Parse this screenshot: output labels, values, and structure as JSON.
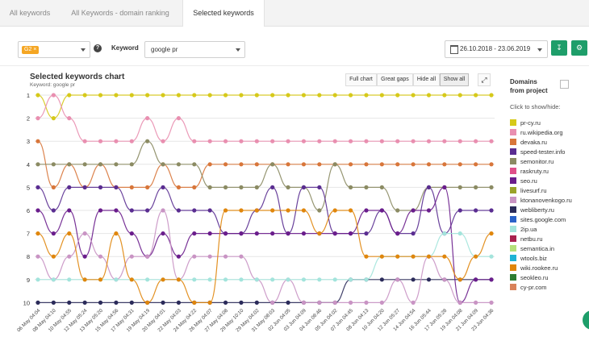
{
  "tabs": [
    {
      "label": "All keywords"
    },
    {
      "label": "All Keywords - domain ranking"
    },
    {
      "label": "Selected keywords"
    }
  ],
  "filters": {
    "search_engine_tag": "G2",
    "keyword_label": "Keyword",
    "keyword_value": "google pr",
    "date_range": "26.10.2018 - 23.06.2019",
    "help_glyph": "?"
  },
  "chart": {
    "title": "Selected keywords chart",
    "subtitle": "Keyword: google pr",
    "buttons": [
      "Full chart",
      "Great gaps",
      "Hide all",
      "Show all"
    ],
    "active_button": "Show all"
  },
  "sidebar": {
    "title_line1": "Domains",
    "title_line2": "from project",
    "hint": "Click to show/hide:",
    "domains": [
      {
        "name": "pr-cy.ru",
        "color": "#d6c91a"
      },
      {
        "name": "ru.wikipedia.org",
        "color": "#e98fb0"
      },
      {
        "name": "devaka.ru",
        "color": "#d8763a"
      },
      {
        "name": "speed-tester.info",
        "color": "#5a2d91"
      },
      {
        "name": "semonitor.ru",
        "color": "#8b8b63"
      },
      {
        "name": "raskruty.ru",
        "color": "#e0508a"
      },
      {
        "name": "seo.ru",
        "color": "#6a1d8c"
      },
      {
        "name": "livesurf.ru",
        "color": "#9aa32a"
      },
      {
        "name": "ktonanovenkogo.ru",
        "color": "#c994c4"
      },
      {
        "name": "webliberty.ru",
        "color": "#2b2b5a"
      },
      {
        "name": "sites.google.com",
        "color": "#2a62c8"
      },
      {
        "name": "2ip.ua",
        "color": "#a3e4dc"
      },
      {
        "name": "netbu.ru",
        "color": "#a8224e"
      },
      {
        "name": "semantica.in",
        "color": "#b5e07a"
      },
      {
        "name": "wtools.biz",
        "color": "#1fb3d4"
      },
      {
        "name": "wiki.rookee.ru",
        "color": "#e0860c"
      },
      {
        "name": "seokleo.ru",
        "color": "#2e7d32"
      },
      {
        "name": "cy-pr.com",
        "color": "#d9825a"
      }
    ]
  },
  "chart_data": {
    "type": "line",
    "y_axis_reversed": true,
    "ylim": [
      1,
      10
    ],
    "y_ticks": [
      1,
      2,
      3,
      4,
      5,
      6,
      7,
      8,
      9,
      10
    ],
    "grid": "horizontal",
    "x": [
      "06 May 04:04",
      "08 May 04:10",
      "10 May 04:55",
      "12 May 05:24",
      "13 May 05:20",
      "15 May 04:56",
      "17 May 04:31",
      "19 May 04:19",
      "20 May 04:01",
      "22 May 04:03",
      "24 May 04:22",
      "26 May 04:07",
      "27 May 04:08",
      "29 May 10:10",
      "29 May 04:02",
      "31 May 08:03",
      "02 Jun 04:05",
      "03 Jun 04:09",
      "04 Jun 08:46",
      "05 Jun 04:02",
      "07 Jun 04:45",
      "08 Jun 04:13",
      "10 Jun 04:20",
      "12 Jun 05:27",
      "14 Jun 04:54",
      "16 Jun 05:44",
      "17 Jun 05:28",
      "19 Jun 04:08",
      "21 Jun 04:09",
      "23 Jun 04:36"
    ],
    "series": [
      {
        "name": "pr-cy.ru",
        "values": [
          1,
          2,
          1,
          1,
          1,
          1,
          1,
          1,
          1,
          1,
          1,
          1,
          1,
          1,
          1,
          1,
          1,
          1,
          1,
          1,
          1,
          1,
          1,
          1,
          1,
          1,
          1,
          1,
          1,
          1
        ]
      },
      {
        "name": "ru.wikipedia.org",
        "values": [
          2,
          1,
          2,
          3,
          3,
          3,
          3,
          2,
          3,
          2,
          3,
          3,
          3,
          3,
          3,
          3,
          3,
          3,
          3,
          3,
          3,
          3,
          3,
          3,
          3,
          3,
          3,
          3,
          3,
          3
        ]
      },
      {
        "name": "devaka.ru",
        "values": [
          3,
          5,
          4,
          5,
          4,
          5,
          5,
          5,
          4,
          5,
          5,
          4,
          4,
          4,
          4,
          4,
          4,
          4,
          4,
          4,
          4,
          4,
          4,
          4,
          4,
          4,
          4,
          4,
          4,
          4
        ]
      },
      {
        "name": "semonitor.ru",
        "values": [
          4,
          4,
          4,
          4,
          4,
          4,
          4,
          3,
          4,
          4,
          4,
          5,
          5,
          5,
          5,
          4,
          5,
          5,
          6,
          4,
          5,
          5,
          5,
          6,
          6,
          5,
          5,
          5,
          5,
          5
        ]
      },
      {
        "name": "speed-tester.info",
        "values": [
          5,
          6,
          5,
          5,
          5,
          5,
          6,
          6,
          5,
          6,
          6,
          6,
          7,
          7,
          6,
          5,
          7,
          5,
          5,
          7,
          7,
          7,
          6,
          7,
          7,
          5,
          7,
          6,
          6,
          6
        ]
      },
      {
        "name": "webliberty.ru",
        "values": [
          10,
          10,
          10,
          10,
          10,
          10,
          10,
          10,
          10,
          10,
          10,
          10,
          10,
          10,
          10,
          10,
          10,
          10,
          10,
          10,
          9,
          9,
          9,
          9,
          9,
          9,
          9,
          9,
          9,
          9
        ]
      },
      {
        "name": "seo.ru",
        "values": [
          6,
          7,
          6,
          8,
          6,
          6,
          7,
          8,
          7,
          8,
          7,
          7,
          7,
          7,
          7,
          7,
          7,
          7,
          7,
          7,
          7,
          6,
          6,
          7,
          6,
          6,
          5,
          10,
          9,
          9
        ]
      },
      {
        "name": "ktonanovenkogo.ru",
        "values": [
          8,
          9,
          8,
          7,
          8,
          9,
          8,
          8,
          6,
          9,
          8,
          8,
          8,
          8,
          9,
          10,
          9,
          10,
          10,
          10,
          10,
          10,
          10,
          9,
          10,
          8,
          9,
          10,
          10,
          10
        ]
      },
      {
        "name": "2ip.ua",
        "values": [
          9,
          9,
          9,
          9,
          9,
          9,
          9,
          9,
          9,
          9,
          9,
          9,
          9,
          9,
          9,
          9,
          9,
          9,
          9,
          9,
          9,
          9,
          8,
          8,
          8,
          8,
          7,
          7,
          8,
          8
        ]
      },
      {
        "name": "wiki.rookee.ru",
        "values": [
          7,
          8,
          7,
          9,
          9,
          7,
          9,
          10,
          9,
          9,
          10,
          10,
          6,
          6,
          6,
          6,
          6,
          6,
          7,
          6,
          6,
          8,
          8,
          8,
          8,
          8,
          8,
          9,
          8,
          7
        ]
      }
    ]
  }
}
